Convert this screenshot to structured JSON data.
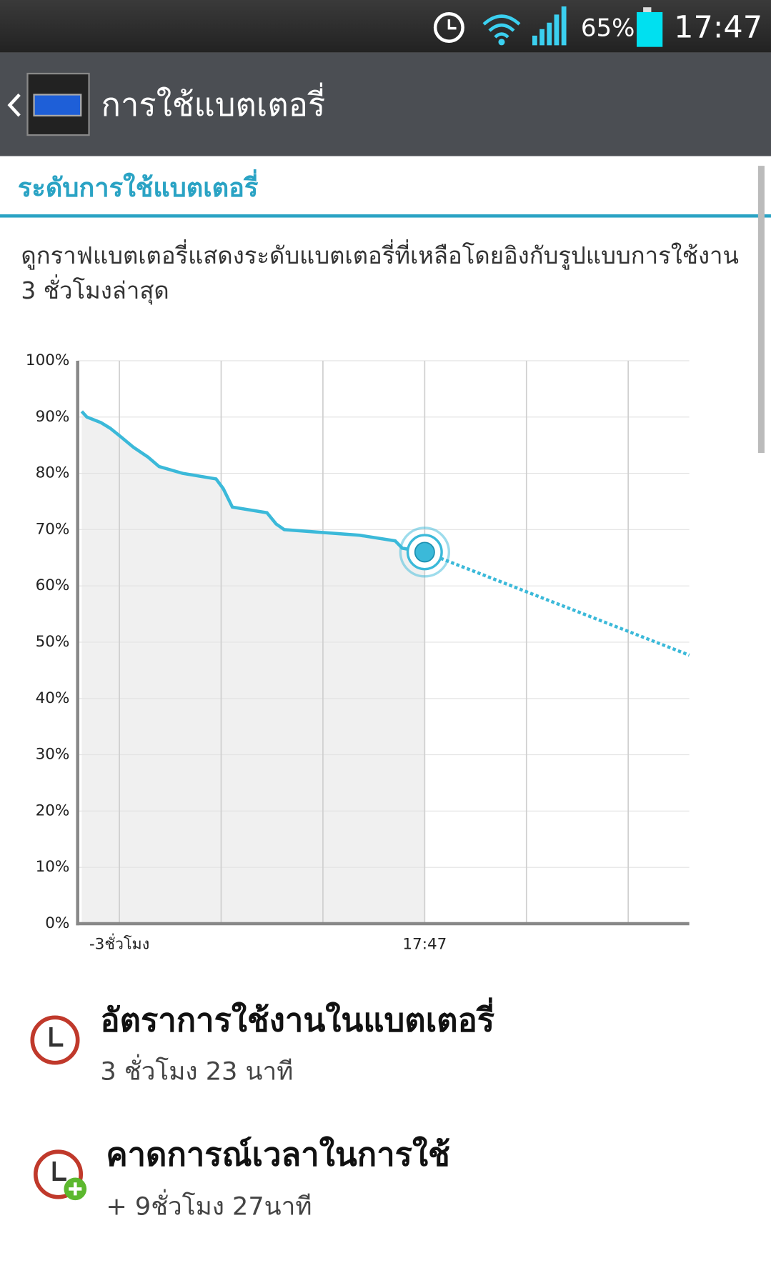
{
  "status_bar": {
    "battery": "65%",
    "time": "17:47"
  },
  "header": {
    "title": "การใช้แบตเตอรี่"
  },
  "section": {
    "title": "ระดับการใช้แบตเตอรี่",
    "description": "ดูกราฟแบตเตอรี่แสดงระดับแบตเตอรี่ที่เหลือโดยอิงกับรูปแบบการใช้งาน 3 ชั่วโมงล่าสุด"
  },
  "chart_data": {
    "type": "line",
    "xlim": [
      -3.41,
      2.6
    ],
    "xticks": [
      {
        "value": -3,
        "label": "-3ชั่วโมง"
      },
      {
        "value": 0,
        "label": "17:47"
      }
    ],
    "xgrid": [
      -3,
      -2,
      -1,
      0,
      1,
      2
    ],
    "ylim": [
      0,
      100
    ],
    "yticks": [
      {
        "value": 0,
        "label": "0%"
      },
      {
        "value": 10,
        "label": "10%"
      },
      {
        "value": 20,
        "label": "20%"
      },
      {
        "value": 30,
        "label": "30%"
      },
      {
        "value": 40,
        "label": "40%"
      },
      {
        "value": 50,
        "label": "50%"
      },
      {
        "value": 60,
        "label": "60%"
      },
      {
        "value": 70,
        "label": "70%"
      },
      {
        "value": 80,
        "label": "80%"
      },
      {
        "value": 90,
        "label": "90%"
      },
      {
        "value": 100,
        "label": "100%"
      }
    ],
    "grid": true,
    "series": [
      {
        "color": "#3bb9d9",
        "style": "solid",
        "x": [
          -3.37,
          -3.32,
          -3.18,
          -3.09,
          -2.98,
          -2.86,
          -2.72,
          -2.61,
          -2.38,
          -2.05,
          -1.98,
          -1.89,
          -1.55,
          -1.46,
          -1.38,
          -0.64,
          -0.29,
          -0.22,
          0
        ],
        "values": [
          91,
          90,
          89,
          88,
          86.4,
          84.6,
          82.9,
          81.2,
          80,
          79,
          77.3,
          74,
          73,
          71,
          70,
          69,
          68,
          66.7,
          66
        ]
      },
      {
        "color": "#3bb9d9",
        "style": "dotted",
        "x": [
          0,
          2.6
        ],
        "values": [
          66,
          47.7
        ]
      }
    ]
  },
  "items": [
    {
      "title": "อัตราการใช้งานในแบตเตอรี่",
      "value": "3 ชั่วโมง 23 นาที"
    },
    {
      "title": "คาดการณ์เวลาในการใช้",
      "value": "+ 9ชั่วโมง 27นาที"
    }
  ]
}
